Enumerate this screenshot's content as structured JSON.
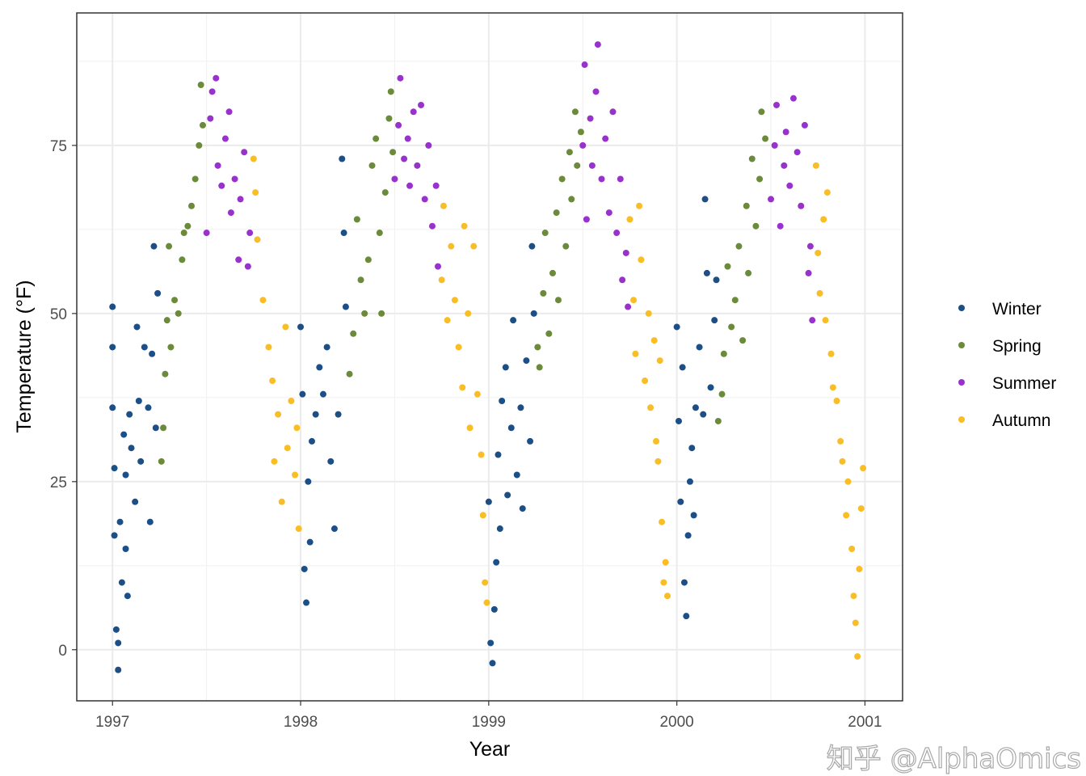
{
  "chart_data": {
    "type": "scatter",
    "xlabel": "Year",
    "ylabel": "Temperature (°F)",
    "xlim": [
      1996.81,
      2001.2
    ],
    "ylim": [
      -7.6,
      94.7
    ],
    "x_ticks": [
      1997,
      1998,
      1999,
      2000,
      2001
    ],
    "y_ticks": [
      0,
      25,
      50,
      75
    ],
    "x_tick_labels": [
      "1997",
      "1998",
      "1999",
      "2000",
      "2001"
    ],
    "y_tick_labels": [
      "0",
      "25",
      "50",
      "75"
    ],
    "grid": true,
    "legend_position": "right",
    "series": [
      {
        "name": "Winter",
        "color": "#1c4f87",
        "points": [
          [
            1997.0,
            51
          ],
          [
            1997.0,
            45
          ],
          [
            1997.0,
            36
          ],
          [
            1997.01,
            27
          ],
          [
            1997.01,
            17
          ],
          [
            1997.02,
            3
          ],
          [
            1997.03,
            -3
          ],
          [
            1997.03,
            1
          ],
          [
            1997.04,
            19
          ],
          [
            1997.05,
            10
          ],
          [
            1997.06,
            32
          ],
          [
            1997.07,
            15
          ],
          [
            1997.07,
            26
          ],
          [
            1997.08,
            8
          ],
          [
            1997.09,
            35
          ],
          [
            1997.1,
            30
          ],
          [
            1997.12,
            22
          ],
          [
            1997.13,
            48
          ],
          [
            1997.14,
            37
          ],
          [
            1997.15,
            28
          ],
          [
            1997.17,
            45
          ],
          [
            1997.19,
            36
          ],
          [
            1997.2,
            19
          ],
          [
            1997.21,
            44
          ],
          [
            1997.23,
            33
          ],
          [
            1997.22,
            60
          ],
          [
            1997.24,
            53
          ],
          [
            1998.0,
            48
          ],
          [
            1998.01,
            38
          ],
          [
            1998.02,
            12
          ],
          [
            1998.03,
            7
          ],
          [
            1998.04,
            25
          ],
          [
            1998.05,
            16
          ],
          [
            1998.06,
            31
          ],
          [
            1998.08,
            35
          ],
          [
            1998.1,
            42
          ],
          [
            1998.12,
            38
          ],
          [
            1998.14,
            45
          ],
          [
            1998.16,
            28
          ],
          [
            1998.18,
            18
          ],
          [
            1998.2,
            35
          ],
          [
            1998.22,
            73
          ],
          [
            1998.23,
            62
          ],
          [
            1998.24,
            51
          ],
          [
            1999.0,
            22
          ],
          [
            1999.01,
            1
          ],
          [
            1999.02,
            -2
          ],
          [
            1999.03,
            6
          ],
          [
            1999.04,
            13
          ],
          [
            1999.05,
            29
          ],
          [
            1999.06,
            18
          ],
          [
            1999.07,
            37
          ],
          [
            1999.09,
            42
          ],
          [
            1999.1,
            23
          ],
          [
            1999.12,
            33
          ],
          [
            1999.13,
            49
          ],
          [
            1999.15,
            26
          ],
          [
            1999.17,
            36
          ],
          [
            1999.18,
            21
          ],
          [
            1999.2,
            43
          ],
          [
            1999.22,
            31
          ],
          [
            1999.23,
            60
          ],
          [
            1999.24,
            50
          ],
          [
            2000.0,
            48
          ],
          [
            2000.01,
            34
          ],
          [
            2000.02,
            22
          ],
          [
            2000.03,
            42
          ],
          [
            2000.04,
            10
          ],
          [
            2000.05,
            5
          ],
          [
            2000.06,
            17
          ],
          [
            2000.07,
            25
          ],
          [
            2000.08,
            30
          ],
          [
            2000.09,
            20
          ],
          [
            2000.1,
            36
          ],
          [
            2000.12,
            45
          ],
          [
            2000.14,
            35
          ],
          [
            2000.15,
            67
          ],
          [
            2000.16,
            56
          ],
          [
            2000.18,
            39
          ],
          [
            2000.2,
            49
          ],
          [
            2000.21,
            55
          ]
        ]
      },
      {
        "name": "Spring",
        "color": "#6b8a3a",
        "points": [
          [
            1997.26,
            28
          ],
          [
            1997.27,
            33
          ],
          [
            1997.28,
            41
          ],
          [
            1997.29,
            49
          ],
          [
            1997.3,
            60
          ],
          [
            1997.31,
            45
          ],
          [
            1997.33,
            52
          ],
          [
            1997.35,
            50
          ],
          [
            1997.37,
            58
          ],
          [
            1997.38,
            62
          ],
          [
            1997.4,
            63
          ],
          [
            1997.42,
            66
          ],
          [
            1997.44,
            70
          ],
          [
            1997.46,
            75
          ],
          [
            1997.47,
            84
          ],
          [
            1997.48,
            78
          ],
          [
            1998.26,
            41
          ],
          [
            1998.28,
            47
          ],
          [
            1998.3,
            64
          ],
          [
            1998.32,
            55
          ],
          [
            1998.34,
            50
          ],
          [
            1998.36,
            58
          ],
          [
            1998.38,
            72
          ],
          [
            1998.4,
            76
          ],
          [
            1998.42,
            62
          ],
          [
            1998.43,
            50
          ],
          [
            1998.45,
            68
          ],
          [
            1998.47,
            79
          ],
          [
            1998.48,
            83
          ],
          [
            1998.49,
            74
          ],
          [
            1999.26,
            45
          ],
          [
            1999.27,
            42
          ],
          [
            1999.29,
            53
          ],
          [
            1999.3,
            62
          ],
          [
            1999.32,
            47
          ],
          [
            1999.34,
            56
          ],
          [
            1999.36,
            65
          ],
          [
            1999.37,
            52
          ],
          [
            1999.39,
            70
          ],
          [
            1999.41,
            60
          ],
          [
            1999.43,
            74
          ],
          [
            1999.44,
            67
          ],
          [
            1999.46,
            80
          ],
          [
            1999.47,
            72
          ],
          [
            1999.49,
            77
          ],
          [
            2000.22,
            34
          ],
          [
            2000.24,
            38
          ],
          [
            2000.25,
            44
          ],
          [
            2000.27,
            57
          ],
          [
            2000.29,
            48
          ],
          [
            2000.31,
            52
          ],
          [
            2000.33,
            60
          ],
          [
            2000.35,
            46
          ],
          [
            2000.37,
            66
          ],
          [
            2000.38,
            56
          ],
          [
            2000.4,
            73
          ],
          [
            2000.42,
            63
          ],
          [
            2000.44,
            70
          ],
          [
            2000.45,
            80
          ],
          [
            2000.47,
            76
          ]
        ]
      },
      {
        "name": "Summer",
        "color": "#9932cc",
        "points": [
          [
            1997.5,
            62
          ],
          [
            1997.52,
            79
          ],
          [
            1997.53,
            83
          ],
          [
            1997.55,
            85
          ],
          [
            1997.56,
            72
          ],
          [
            1997.58,
            69
          ],
          [
            1997.6,
            76
          ],
          [
            1997.62,
            80
          ],
          [
            1997.63,
            65
          ],
          [
            1997.65,
            70
          ],
          [
            1997.67,
            58
          ],
          [
            1997.68,
            67
          ],
          [
            1997.7,
            74
          ],
          [
            1997.72,
            57
          ],
          [
            1997.73,
            62
          ],
          [
            1998.5,
            70
          ],
          [
            1998.52,
            78
          ],
          [
            1998.53,
            85
          ],
          [
            1998.55,
            73
          ],
          [
            1998.57,
            76
          ],
          [
            1998.58,
            69
          ],
          [
            1998.6,
            80
          ],
          [
            1998.62,
            72
          ],
          [
            1998.64,
            81
          ],
          [
            1998.66,
            67
          ],
          [
            1998.68,
            75
          ],
          [
            1998.7,
            63
          ],
          [
            1998.72,
            69
          ],
          [
            1998.73,
            57
          ],
          [
            1999.5,
            75
          ],
          [
            1999.51,
            87
          ],
          [
            1999.52,
            64
          ],
          [
            1999.54,
            79
          ],
          [
            1999.55,
            72
          ],
          [
            1999.57,
            83
          ],
          [
            1999.58,
            90
          ],
          [
            1999.6,
            70
          ],
          [
            1999.62,
            76
          ],
          [
            1999.64,
            65
          ],
          [
            1999.66,
            80
          ],
          [
            1999.68,
            62
          ],
          [
            1999.7,
            70
          ],
          [
            1999.71,
            55
          ],
          [
            1999.73,
            59
          ],
          [
            1999.74,
            51
          ],
          [
            2000.5,
            67
          ],
          [
            2000.52,
            75
          ],
          [
            2000.53,
            81
          ],
          [
            2000.55,
            63
          ],
          [
            2000.57,
            72
          ],
          [
            2000.58,
            77
          ],
          [
            2000.6,
            69
          ],
          [
            2000.62,
            82
          ],
          [
            2000.64,
            74
          ],
          [
            2000.66,
            66
          ],
          [
            2000.68,
            78
          ],
          [
            2000.7,
            56
          ],
          [
            2000.71,
            60
          ],
          [
            2000.72,
            49
          ]
        ]
      },
      {
        "name": "Autumn",
        "color": "#f9be26",
        "points": [
          [
            1997.75,
            73
          ],
          [
            1997.76,
            68
          ],
          [
            1997.77,
            61
          ],
          [
            1997.8,
            52
          ],
          [
            1997.83,
            45
          ],
          [
            1997.85,
            40
          ],
          [
            1997.86,
            28
          ],
          [
            1997.88,
            35
          ],
          [
            1997.9,
            22
          ],
          [
            1997.92,
            48
          ],
          [
            1997.93,
            30
          ],
          [
            1997.95,
            37
          ],
          [
            1997.97,
            26
          ],
          [
            1997.98,
            33
          ],
          [
            1997.99,
            18
          ],
          [
            1998.75,
            55
          ],
          [
            1998.76,
            66
          ],
          [
            1998.78,
            49
          ],
          [
            1998.8,
            60
          ],
          [
            1998.82,
            52
          ],
          [
            1998.84,
            45
          ],
          [
            1998.86,
            39
          ],
          [
            1998.87,
            63
          ],
          [
            1998.89,
            50
          ],
          [
            1998.9,
            33
          ],
          [
            1998.92,
            60
          ],
          [
            1998.94,
            38
          ],
          [
            1998.96,
            29
          ],
          [
            1998.97,
            20
          ],
          [
            1998.98,
            10
          ],
          [
            1998.99,
            7
          ],
          [
            1999.75,
            64
          ],
          [
            1999.77,
            52
          ],
          [
            1999.78,
            44
          ],
          [
            1999.8,
            66
          ],
          [
            1999.81,
            58
          ],
          [
            1999.83,
            40
          ],
          [
            1999.85,
            50
          ],
          [
            1999.86,
            36
          ],
          [
            1999.88,
            46
          ],
          [
            1999.89,
            31
          ],
          [
            1999.9,
            28
          ],
          [
            1999.91,
            43
          ],
          [
            1999.92,
            19
          ],
          [
            1999.93,
            10
          ],
          [
            1999.94,
            13
          ],
          [
            1999.95,
            8
          ],
          [
            2000.74,
            72
          ],
          [
            2000.75,
            59
          ],
          [
            2000.76,
            53
          ],
          [
            2000.78,
            64
          ],
          [
            2000.79,
            49
          ],
          [
            2000.8,
            68
          ],
          [
            2000.82,
            44
          ],
          [
            2000.83,
            39
          ],
          [
            2000.85,
            37
          ],
          [
            2000.87,
            31
          ],
          [
            2000.88,
            28
          ],
          [
            2000.9,
            20
          ],
          [
            2000.91,
            25
          ],
          [
            2000.93,
            15
          ],
          [
            2000.94,
            8
          ],
          [
            2000.95,
            4
          ],
          [
            2000.96,
            -1
          ],
          [
            2000.97,
            12
          ],
          [
            2000.98,
            21
          ],
          [
            2000.99,
            27
          ]
        ]
      }
    ]
  },
  "watermark": "知乎 @AlphaOmics"
}
